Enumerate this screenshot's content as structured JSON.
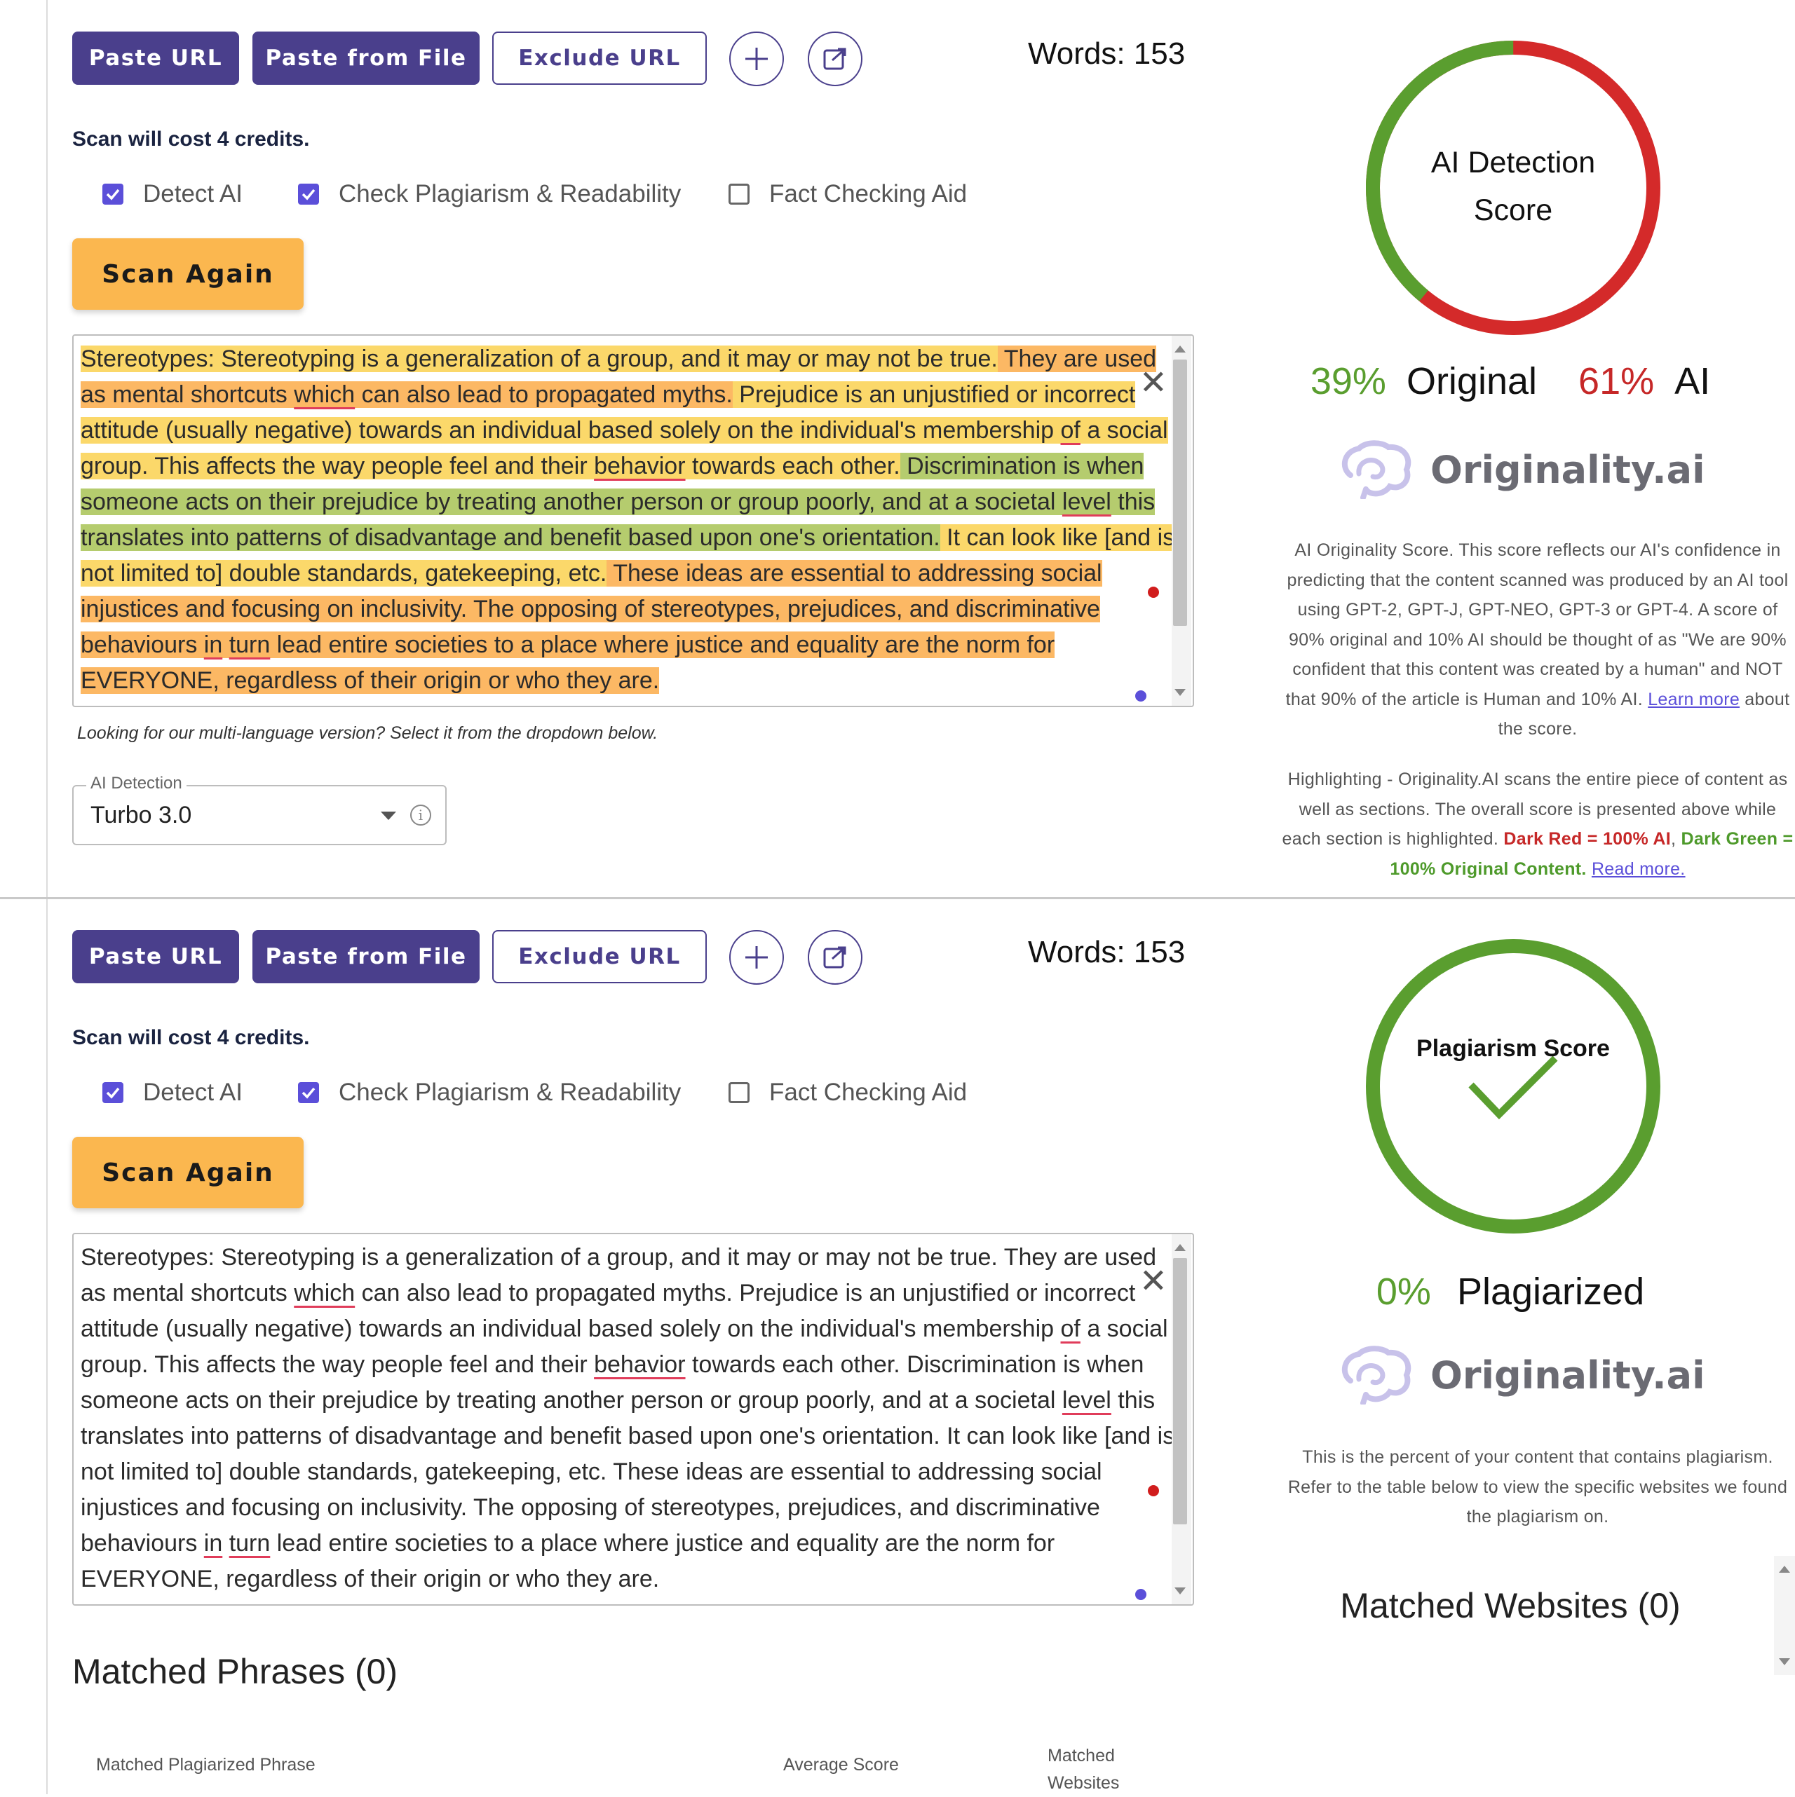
{
  "toolbar": {
    "paste_url": "Paste URL",
    "paste_file": "Paste from File",
    "exclude_url": "Exclude URL",
    "words": "Words: 153"
  },
  "scan": {
    "cost": "Scan will cost 4 credits.",
    "options": [
      {
        "label": "Detect AI",
        "checked": true
      },
      {
        "label": "Check Plagiarism & Readability",
        "checked": true
      },
      {
        "label": "Fact Checking Aid",
        "checked": false
      }
    ],
    "button": "Scan Again"
  },
  "text": {
    "p1": "Stereotypes: Stereotyping is a generalization of a group, and it may or may not be true.",
    "p2a": " They are used",
    "p2b": "as mental shortcuts ",
    "p2w": "which",
    "p2c": " can also lead to propagated myths.",
    "p3a": " Prejudice is an unjustified or incorrect",
    "p3b": "attitude (usually negative) towards an individual based solely on the individual's membership ",
    "p3w": "of",
    "p3c": " a social",
    "p4a": "group. This affects the way people feel and their ",
    "p4w": "behavior",
    "p4b": " towards each other.",
    "p5a": " Discrimination is when",
    "p5b": "someone acts on their prejudice by treating another person or group poorly, and at a societal ",
    "p5w": "level",
    "p5c": " this",
    "p5d": "translates into patterns of disadvantage and benefit based upon one's orientation.",
    "p6a": " It can look like [and is",
    "p6b": "not limited to] double standards, gatekeeping, etc.",
    "p7a": " These ideas are essential to addressing social",
    "p7b": "injustices and focusing on inclusivity. The opposing of stereotypes, prejudices, and discriminative",
    "p7c": "behaviours ",
    "p7w1": "in",
    "p7w2": "turn",
    "p7d": " lead entire societies to a place where justice and equality are the norm for",
    "p7e": "EVERYONE, regardless of their origin or who they are."
  },
  "multilang_note": "Looking for our multi-language version? Select it from the dropdown below.",
  "dropdown": {
    "label": "AI Detection",
    "value": "Turbo 3.0"
  },
  "ai_panel": {
    "gauge_title_1": "AI Detection",
    "gauge_title_2": "Score",
    "original_pct": "39%",
    "original_label": "Original",
    "ai_pct": "61%",
    "ai_label": "AI",
    "original_fraction": 0.39,
    "brand": "Originality.ai",
    "desc1": "AI Originality Score. This score reflects our AI's confidence in predicting that the content scanned was produced by an AI tool using GPT-2, GPT-J, GPT-NEO, GPT-3 or GPT-4. A score of 90% original and 10% AI should be thought of as \"We are 90% confident that this content was created by a human\" and NOT that 90% of the article is Human and 10% AI.",
    "learn_more": "Learn more",
    "desc1_tail": " about the score.",
    "desc2": "Highlighting - Originality.AI scans the entire piece of content as well as sections. The overall score is presented above while each section is highlighted.",
    "dark_red": "Dark Red = 100% AI",
    "dark_green": "Dark Green = 100% Original Content.",
    "read_more": "Read more."
  },
  "plag_panel": {
    "gauge_title": "Plagiarism Score",
    "pct": "0%",
    "label": "Plagiarized",
    "brand": "Originality.ai",
    "desc": "This is the percent of your content that contains plagiarism. Refer to the table below to view the specific websites we found the plagiarism on.",
    "matched_websites": "Matched Websites (0)",
    "matched_phrases": "Matched Phrases (0)",
    "col1": "Matched Plagiarized Phrase",
    "col2": "Average Score",
    "col3a": "Matched",
    "col3b": "Websites"
  },
  "colors": {
    "primary": "#4a3f8c",
    "scan": "#fbb74f",
    "green": "#5a9e2f",
    "red": "#d42a2a"
  }
}
